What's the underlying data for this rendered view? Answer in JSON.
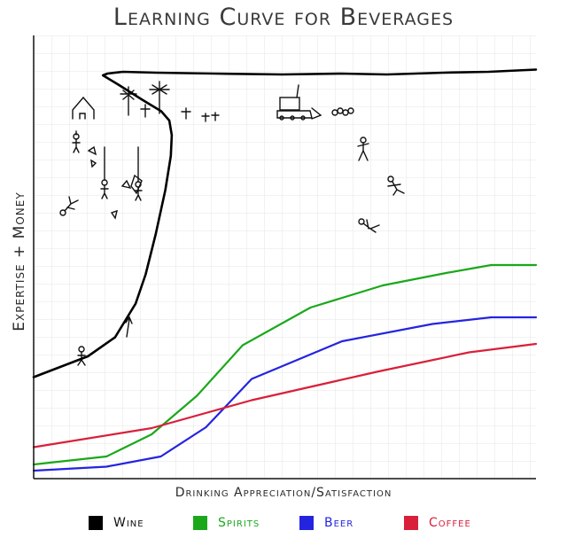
{
  "chart_data": {
    "type": "line",
    "title": "Learning Curve for Beverages",
    "xlabel": "Drinking Appreciation/Satisfaction",
    "ylabel": "Expertise + Money",
    "xlim": [
      0,
      100
    ],
    "ylim": [
      0,
      100
    ],
    "grid": true,
    "legend_position": "bottom",
    "series": [
      {
        "name": "Wine",
        "color": "#000000",
        "points": [
          [
            0,
            22.9
          ],
          [
            10.8,
            27.6
          ],
          [
            16.2,
            31.9
          ],
          [
            20.3,
            39.5
          ],
          [
            22.3,
            46.1
          ],
          [
            24.3,
            55.2
          ],
          [
            26.2,
            65.1
          ],
          [
            27.3,
            72.8
          ],
          [
            27.5,
            77.5
          ],
          [
            27.0,
            80.8
          ],
          [
            25.4,
            82.9
          ],
          [
            21.6,
            85.5
          ],
          [
            17.0,
            88.8
          ],
          [
            13.8,
            91.0
          ],
          [
            14.7,
            91.4
          ],
          [
            17.8,
            91.8
          ],
          [
            24.3,
            91.6
          ],
          [
            36.0,
            91.4
          ],
          [
            49.5,
            91.2
          ],
          [
            61.2,
            91.4
          ],
          [
            70.3,
            91.2
          ],
          [
            81.6,
            91.6
          ],
          [
            90.6,
            91.8
          ],
          [
            100,
            92.3
          ]
        ]
      },
      {
        "name": "Spirits",
        "color": "#1aa81a",
        "points": [
          [
            0,
            3.2
          ],
          [
            14.5,
            5.0
          ],
          [
            23.5,
            10.0
          ],
          [
            32.5,
            18.7
          ],
          [
            41.6,
            30.1
          ],
          [
            55.1,
            38.6
          ],
          [
            69.5,
            43.6
          ],
          [
            82.1,
            46.4
          ],
          [
            91.1,
            48.2
          ],
          [
            100,
            48.2
          ]
        ]
      },
      {
        "name": "Beer",
        "color": "#2424e0",
        "points": [
          [
            0,
            1.8
          ],
          [
            14.5,
            2.7
          ],
          [
            25.3,
            5.0
          ],
          [
            34.3,
            11.6
          ],
          [
            43.4,
            22.5
          ],
          [
            61.4,
            31.0
          ],
          [
            79.4,
            34.9
          ],
          [
            91.1,
            36.4
          ],
          [
            100,
            36.4
          ]
        ]
      },
      {
        "name": "Coffee",
        "color": "#d9203a",
        "points": [
          [
            0,
            7.1
          ],
          [
            23.5,
            11.4
          ],
          [
            43.4,
            17.7
          ],
          [
            68.7,
            24.2
          ],
          [
            86.7,
            28.5
          ],
          [
            100,
            30.4
          ]
        ]
      }
    ]
  }
}
